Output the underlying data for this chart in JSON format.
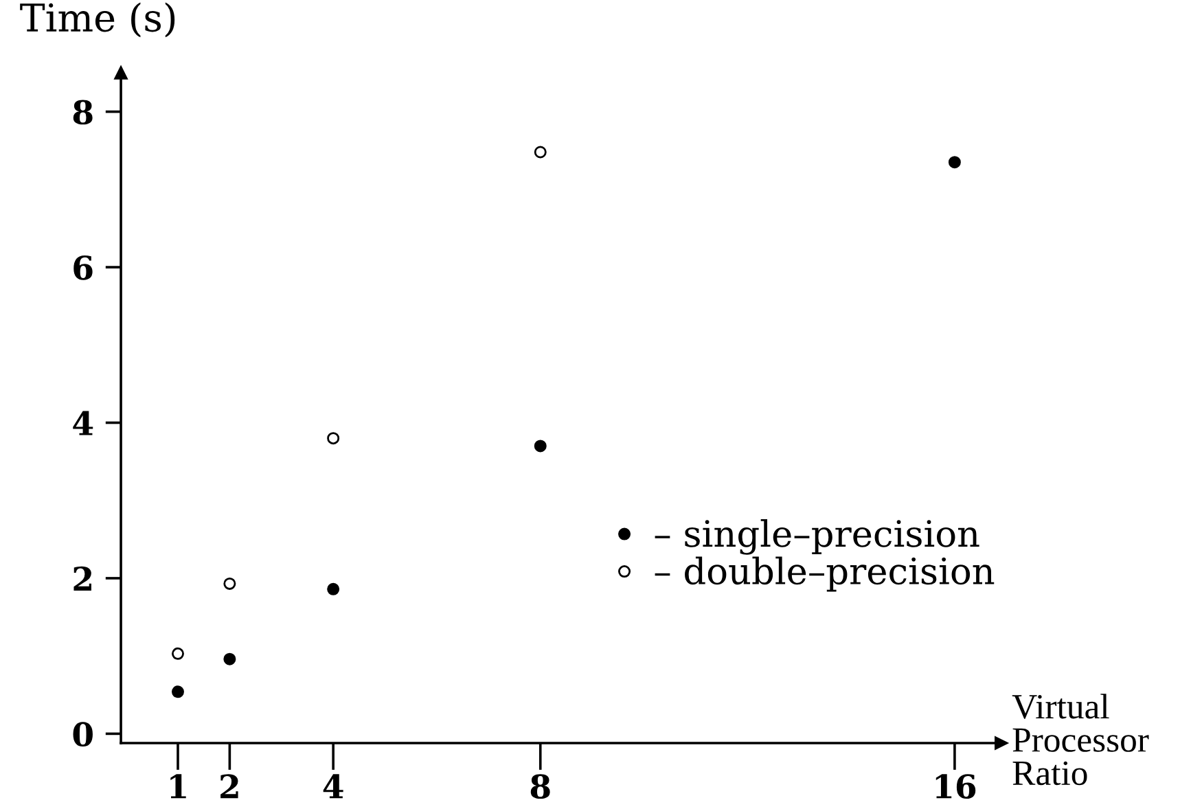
{
  "chart_data": {
    "type": "scatter",
    "ylabel": "Time (s)",
    "xlabel": "Virtual\nProcessor\nRatio",
    "x": [
      1,
      2,
      4,
      8,
      16
    ],
    "series": [
      {
        "name": "– single–precision",
        "color": "#000000",
        "values": [
          0.54,
          0.96,
          1.86,
          3.7,
          7.35
        ]
      },
      {
        "name": "– double–precision",
        "color": "#ffffff",
        "values": [
          1.03,
          1.93,
          3.8,
          7.48,
          null
        ]
      }
    ],
    "xlim": [
      -0.1,
      16.9
    ],
    "ylim": [
      -0.12,
      8.5
    ],
    "xticks": [
      1,
      2,
      4,
      8,
      16
    ],
    "yticks": [
      0,
      2,
      4,
      6,
      8
    ],
    "marker": "circle",
    "grid": false,
    "legend": "right"
  }
}
